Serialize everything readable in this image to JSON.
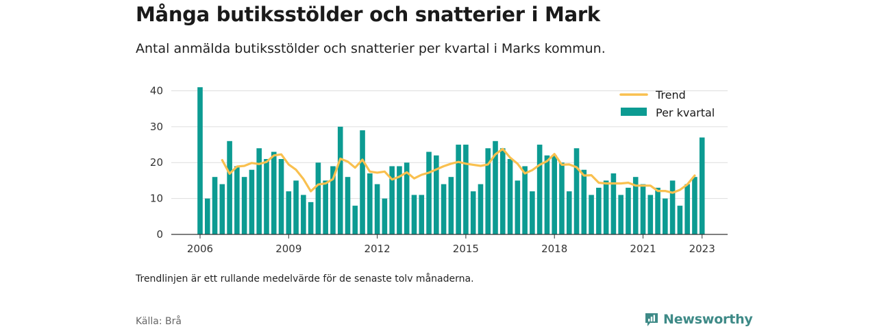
{
  "header": {
    "title": "Många butiksstölder och snatterier i Mark",
    "subtitle": "Antal anmälda butiksstölder och snatterier per kvartal i Marks kommun."
  },
  "footer": {
    "note": "Trendlinjen är ett rullande medelvärde för de senaste tolv månaderna.",
    "source": "Källa: Brå",
    "brand": "Newsworthy"
  },
  "colors": {
    "bars": "#0c9b92",
    "trend": "#f9c04f",
    "grid": "#dddddd",
    "axis": "#333333",
    "brand": "#3e8a87"
  },
  "chart_data": {
    "type": "bar",
    "title": "Många butiksstölder och snatterier i Mark",
    "x_ticks": [
      "2006",
      "2009",
      "2012",
      "2015",
      "2018",
      "2021",
      "2023"
    ],
    "y_ticks": [
      "0",
      "10",
      "20",
      "30",
      "40"
    ],
    "ylim": [
      0,
      42
    ],
    "xlim": [
      2005.6,
      2023.9
    ],
    "grid": true,
    "legend": {
      "position": "top-right",
      "entries": [
        "Trend",
        "Per kvartal"
      ]
    },
    "start": "2006 Q1",
    "series": [
      {
        "name": "Per kvartal",
        "kind": "bar",
        "values": [
          41,
          10,
          16,
          14,
          26,
          19,
          16,
          18,
          24,
          21,
          23,
          21,
          12,
          15,
          11,
          9,
          20,
          15,
          19,
          30,
          16,
          8,
          29,
          17,
          14,
          10,
          19,
          19,
          20,
          11,
          11,
          23,
          22,
          14,
          16,
          25,
          25,
          12,
          14,
          24,
          26,
          24,
          21,
          15,
          19,
          12,
          25,
          22,
          22,
          20,
          12,
          24,
          18,
          11,
          13,
          15,
          17,
          11,
          13,
          16,
          14,
          11,
          13,
          10,
          15,
          8,
          14,
          16,
          27
        ]
      },
      {
        "name": "Trend",
        "kind": "line",
        "start_index": 3,
        "values": [
          20.7,
          16.9,
          18.9,
          19.1,
          19.9,
          19.6,
          20.2,
          22.0,
          22.3,
          19.5,
          18.0,
          15.4,
          12.0,
          13.9,
          14.2,
          15.4,
          21.1,
          20.3,
          18.6,
          20.8,
          17.5,
          17.2,
          17.5,
          15.3,
          16.1,
          17.3,
          15.6,
          16.6,
          17.2,
          18.1,
          19.0,
          19.7,
          20.2,
          19.7,
          19.4,
          19.1,
          19.5,
          22.3,
          23.8,
          21.4,
          19.7,
          17.0,
          17.9,
          19.4,
          20.4,
          22.4,
          19.4,
          19.5,
          18.7,
          16.4,
          16.5,
          14.4,
          14.2,
          14.2,
          14.2,
          14.4,
          13.6,
          13.6,
          13.6,
          12.1,
          12.1,
          11.6,
          12.4,
          13.9,
          16.4
        ]
      }
    ]
  }
}
